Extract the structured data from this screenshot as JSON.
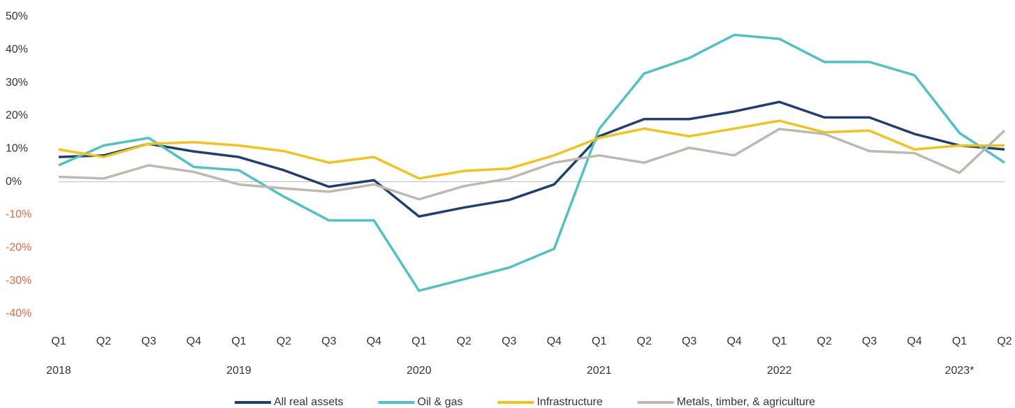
{
  "chart_data": {
    "type": "line",
    "categories": [
      "Q1",
      "Q2",
      "Q3",
      "Q4",
      "Q1",
      "Q2",
      "Q3",
      "Q4",
      "Q1",
      "Q2",
      "Q3",
      "Q4",
      "Q1",
      "Q2",
      "Q3",
      "Q4",
      "Q1",
      "Q2",
      "Q3",
      "Q4",
      "Q1",
      "Q2"
    ],
    "year_labels": [
      "2018",
      null,
      null,
      null,
      "2019",
      null,
      null,
      null,
      "2020",
      null,
      null,
      null,
      "2021",
      null,
      null,
      null,
      "2022",
      null,
      null,
      null,
      "2023*",
      null
    ],
    "series": [
      {
        "name": "All real assets",
        "color": "#1f3f6e",
        "values": [
          7.5,
          8,
          11.5,
          9.2,
          7.5,
          3.5,
          -1.5,
          0.5,
          -10.5,
          -7.8,
          -5.5,
          -0.8,
          13.8,
          19,
          19,
          21.3,
          24.2,
          19.5,
          19.5,
          14.5,
          11,
          9.8
        ]
      },
      {
        "name": "Oil & gas",
        "color": "#4ec3c4",
        "values": [
          5,
          11,
          13.3,
          4.5,
          3.5,
          -4.5,
          -11.7,
          -11.7,
          -33,
          -29.5,
          -26,
          -20.3,
          16,
          32.8,
          37.5,
          44.5,
          43.3,
          36.3,
          36.3,
          32.3,
          14.8,
          5.8
        ]
      },
      {
        "name": "Infrastructure",
        "color": "#f2c318",
        "values": [
          9.8,
          7.5,
          11.5,
          12,
          11,
          9.3,
          5.8,
          7.5,
          1,
          3.3,
          4,
          8,
          13.3,
          16.1,
          13.8,
          16.1,
          18.5,
          15,
          15.5,
          9.8,
          11,
          11
        ]
      },
      {
        "name": "Metals, timber, & agriculture",
        "color": "#bdb9b0",
        "values": [
          1.5,
          1,
          5,
          3,
          -0.8,
          -2,
          -3,
          -0.8,
          -5.3,
          -1.3,
          1,
          5.8,
          8,
          5.8,
          10.3,
          8,
          16,
          14.5,
          9.3,
          8.7,
          2.7,
          15.5
        ]
      }
    ],
    "ylim": [
      -40,
      50
    ],
    "yticks": [
      {
        "value": 50,
        "label": "50%"
      },
      {
        "value": 40,
        "label": "40%"
      },
      {
        "value": 30,
        "label": "30%"
      },
      {
        "value": 20,
        "label": "20%"
      },
      {
        "value": 10,
        "label": "10%"
      },
      {
        "value": 0,
        "label": "0%"
      },
      {
        "value": -10,
        "label": "-10%"
      },
      {
        "value": -20,
        "label": "-20%"
      },
      {
        "value": -30,
        "label": "-30%"
      },
      {
        "value": -40,
        "label": "-40%"
      }
    ],
    "negative_tick_color": "#e8683a",
    "zero_line": true,
    "legend": "bottom"
  }
}
